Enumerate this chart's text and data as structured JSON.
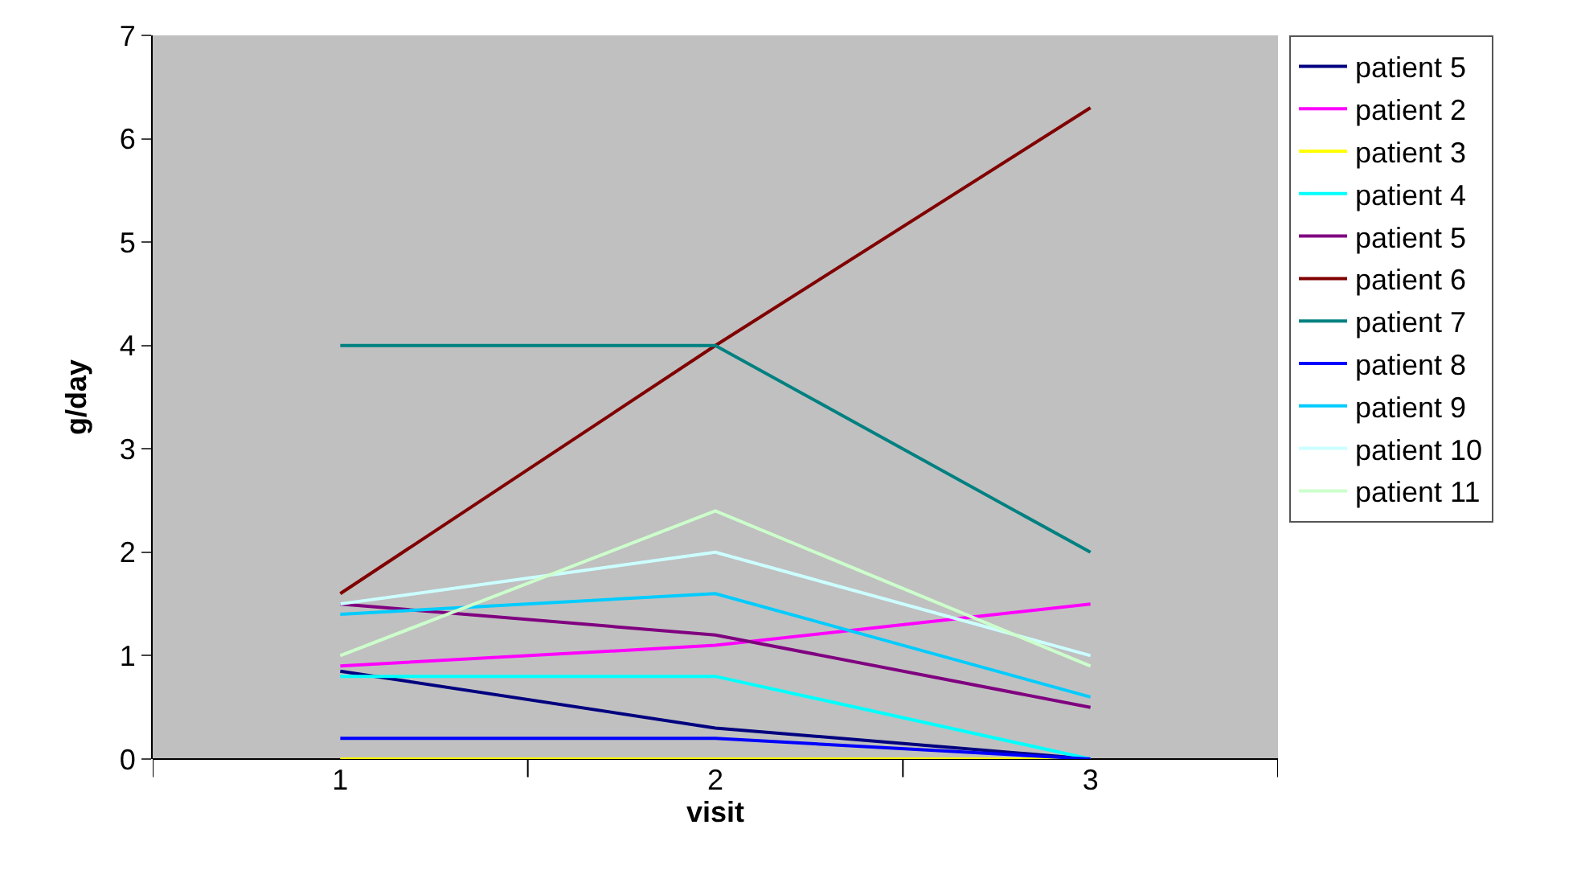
{
  "chart_data": {
    "type": "line",
    "xlabel": "visit",
    "ylabel": "g/day",
    "categories": [
      "1",
      "2",
      "3"
    ],
    "ylim": [
      0,
      7
    ],
    "yticks": [
      0,
      1,
      2,
      3,
      4,
      5,
      6,
      7
    ],
    "grid": false,
    "legend": "right",
    "marker": "none",
    "line_style": "solid",
    "series": [
      {
        "name": "patient 5",
        "color": "#000080",
        "values": [
          0.85,
          0.3,
          0
        ]
      },
      {
        "name": "patient 2",
        "color": "#ff00ff",
        "values": [
          0.9,
          1.1,
          1.5
        ]
      },
      {
        "name": "patient 3",
        "color": "#ffff00",
        "values": [
          0,
          0,
          0
        ]
      },
      {
        "name": "patient 4",
        "color": "#00ffff",
        "values": [
          0.8,
          0.8,
          0
        ]
      },
      {
        "name": "patient 5",
        "color": "#800080",
        "values": [
          1.5,
          1.2,
          0.5
        ]
      },
      {
        "name": "patient 6",
        "color": "#800000",
        "values": [
          1.6,
          4.0,
          6.3
        ]
      },
      {
        "name": "patient 7",
        "color": "#008080",
        "values": [
          4,
          4,
          2
        ]
      },
      {
        "name": "patient 8",
        "color": "#0000ff",
        "values": [
          0.2,
          0.2,
          0
        ]
      },
      {
        "name": "patient 9",
        "color": "#00ccff",
        "values": [
          1.4,
          1.6,
          0.6
        ]
      },
      {
        "name": "patient 10",
        "color": "#ccffff",
        "values": [
          1.5,
          2.0,
          1.0
        ]
      },
      {
        "name": "patient 11",
        "color": "#ccffcc",
        "values": [
          1.0,
          2.4,
          0.9
        ]
      }
    ]
  }
}
